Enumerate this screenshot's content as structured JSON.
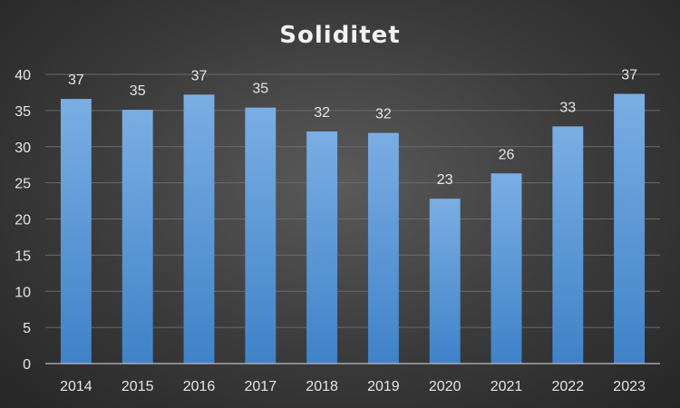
{
  "chart_data": {
    "type": "bar",
    "title": "Soliditet",
    "categories": [
      "2014",
      "2015",
      "2016",
      "2017",
      "2018",
      "2019",
      "2020",
      "2021",
      "2022",
      "2023"
    ],
    "values": [
      36.6,
      35.1,
      37.2,
      35.4,
      32.1,
      31.9,
      22.8,
      26.3,
      32.8,
      37.3
    ],
    "data_labels": [
      "37",
      "35",
      "37",
      "35",
      "32",
      "32",
      "23",
      "26",
      "33",
      "37"
    ],
    "ylim": [
      0,
      40
    ],
    "yticks": [
      0,
      5,
      10,
      15,
      20,
      25,
      30,
      35,
      40
    ],
    "grid": true,
    "legend": "none",
    "colors": {
      "bar_top": "#7aaee3",
      "bar_bottom": "#3f82c8"
    }
  }
}
